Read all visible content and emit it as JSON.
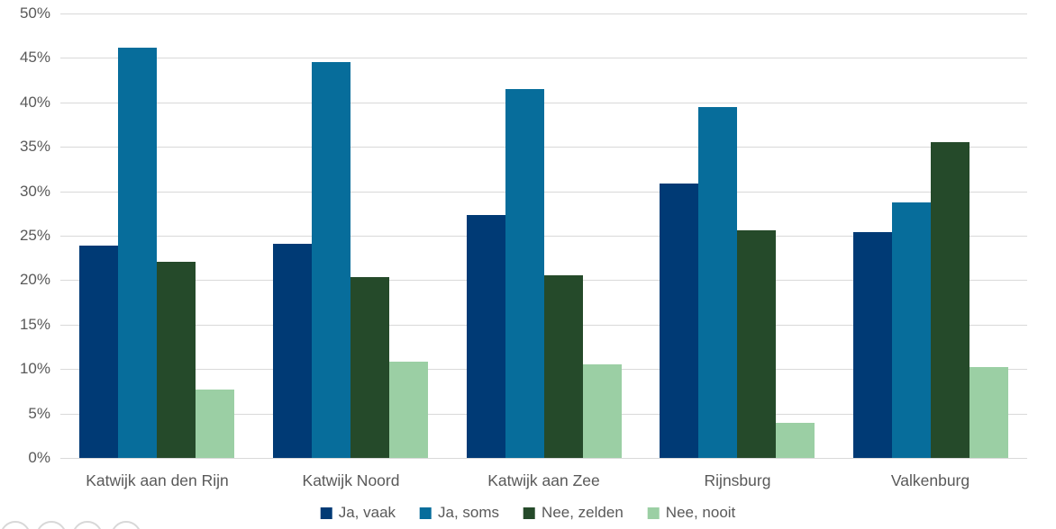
{
  "chart_data": {
    "type": "bar",
    "title": "",
    "categories": [
      "Katwijk aan den Rijn",
      "Katwijk Noord",
      "Katwijk aan Zee",
      "Rijnsburg",
      "Valkenburg"
    ],
    "series": [
      {
        "name": "Ja, vaak",
        "color": "#003a75",
        "values": [
          23.9,
          24.1,
          27.3,
          30.9,
          25.4
        ]
      },
      {
        "name": "Ja, soms",
        "color": "#076d9b",
        "values": [
          46.2,
          44.5,
          41.5,
          39.5,
          28.7
        ]
      },
      {
        "name": "Nee, zelden",
        "color": "#254a2a",
        "values": [
          22.1,
          20.3,
          20.5,
          25.6,
          35.5
        ]
      },
      {
        "name": "Nee, nooit",
        "color": "#9bcfa4",
        "values": [
          7.7,
          10.8,
          10.5,
          3.9,
          10.2
        ]
      }
    ],
    "ylim": [
      0,
      50
    ],
    "yticks": [
      0,
      5,
      10,
      15,
      20,
      25,
      30,
      35,
      40,
      45,
      50
    ],
    "ytick_labels": [
      "0%",
      "5%",
      "10%",
      "15%",
      "20%",
      "25%",
      "30%",
      "35%",
      "40%",
      "45%",
      "50%"
    ],
    "grid": true,
    "gridline_color": "#d9d9d9",
    "axis_text_color": "#595959",
    "legend_position": "bottom"
  },
  "footer": {
    "button_count": 4
  }
}
